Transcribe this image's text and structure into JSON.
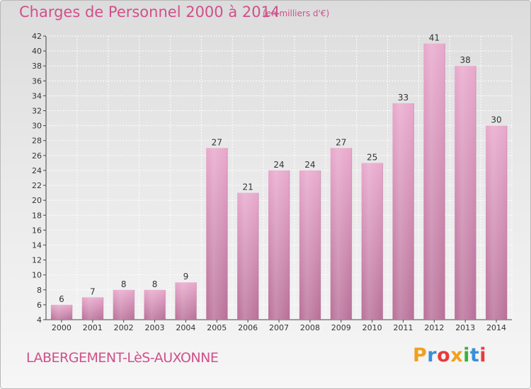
{
  "header": {
    "title": "Charges de Personnel 2000 à 2014",
    "unit_note": "(en milliers d'€)"
  },
  "footer": {
    "town": "LABERGEMENT-LèS-AUXONNE",
    "brand_letters": [
      "P",
      "r",
      "o",
      "x",
      "i",
      "t",
      "i"
    ],
    "brand_colors": [
      "#f0a020",
      "#3a8fd8",
      "#e83a3a",
      "#f0a020",
      "#3ab03a",
      "#3a8fd8",
      "#e83a3a"
    ]
  },
  "colors": {
    "bar_top": "#e8a8cc",
    "bar_bottom": "#b87098",
    "title": "#d0508a"
  },
  "chart_data": {
    "type": "bar",
    "title": "Charges de Personnel 2000 à 2014",
    "subtitle": "(en milliers d'€)",
    "categories": [
      "2000",
      "2001",
      "2002",
      "2003",
      "2004",
      "2005",
      "2006",
      "2007",
      "2008",
      "2009",
      "2010",
      "2011",
      "2012",
      "2013",
      "2014"
    ],
    "values": [
      6,
      7,
      8,
      8,
      9,
      27,
      21,
      24,
      24,
      27,
      25,
      33,
      41,
      38,
      30
    ],
    "ylim": [
      4,
      42
    ],
    "yticks": [
      4,
      6,
      8,
      10,
      12,
      14,
      16,
      18,
      20,
      22,
      24,
      26,
      28,
      30,
      32,
      34,
      36,
      38,
      40,
      42
    ],
    "grid": true,
    "data_labels": true
  }
}
